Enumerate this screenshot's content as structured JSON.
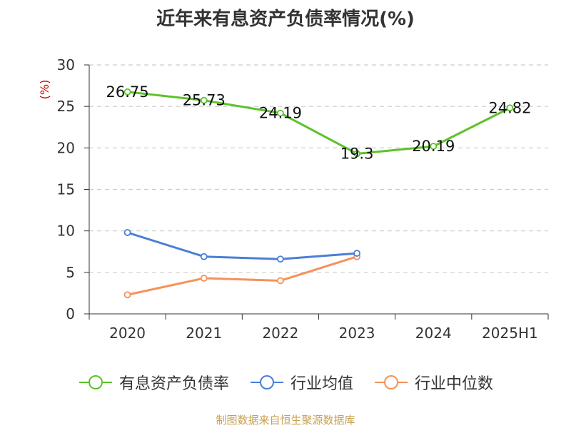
{
  "title": "近年来有息资产负债率情况(%)",
  "source": "制图数据来自恒生聚源数据库",
  "colors": {
    "series1": "#5cc22a",
    "series2": "#4a7fd8",
    "series3": "#f4925a",
    "ylabel": "#cc0000",
    "axis": "#333333",
    "grid": "#cccccc"
  },
  "chart_data": {
    "type": "line",
    "title": "近年来有息资产负债率情况(%)",
    "ylabel": "(%)",
    "xlabel": "",
    "ylim": [
      0,
      30
    ],
    "yticks": [
      0,
      5,
      10,
      15,
      20,
      25,
      30
    ],
    "grid": true,
    "legend_position": "bottom",
    "categories": [
      "2020",
      "2021",
      "2022",
      "2023",
      "2024",
      "2025H1"
    ],
    "series": [
      {
        "name": "有息资产负债率",
        "values": [
          26.75,
          25.73,
          24.19,
          19.3,
          20.19,
          24.82
        ],
        "labels": [
          "26.75",
          "25.73",
          "24.19",
          "19.3",
          "20.19",
          "24.82"
        ],
        "color": "#5cc22a"
      },
      {
        "name": "行业均值",
        "values": [
          9.8,
          6.9,
          6.6,
          7.3,
          null,
          null
        ],
        "color": "#4a7fd8"
      },
      {
        "name": "行业中位数",
        "values": [
          2.3,
          4.3,
          4.0,
          6.9,
          null,
          null
        ],
        "color": "#f4925a"
      }
    ]
  }
}
